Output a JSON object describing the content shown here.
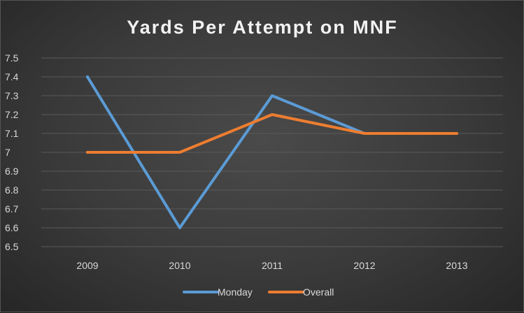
{
  "chart_data": {
    "type": "line",
    "title": "Yards Per Attempt on MNF",
    "categories": [
      "2009",
      "2010",
      "2011",
      "2012",
      "2013"
    ],
    "ylim": [
      6.5,
      7.5
    ],
    "yticks": [
      "7.5",
      "7.4",
      "7.3",
      "7.2",
      "7.1",
      "7",
      "6.9",
      "6.8",
      "6.7",
      "6.6",
      "6.5"
    ],
    "grid": true,
    "legend_position": "bottom",
    "series": [
      {
        "name": "Monday",
        "values": [
          7.4,
          6.6,
          7.3,
          7.1,
          7.1
        ],
        "color": "#5b9bd5"
      },
      {
        "name": "Overall",
        "values": [
          7.0,
          7.0,
          7.2,
          7.1,
          7.1
        ],
        "color": "#ed7d31"
      }
    ]
  }
}
